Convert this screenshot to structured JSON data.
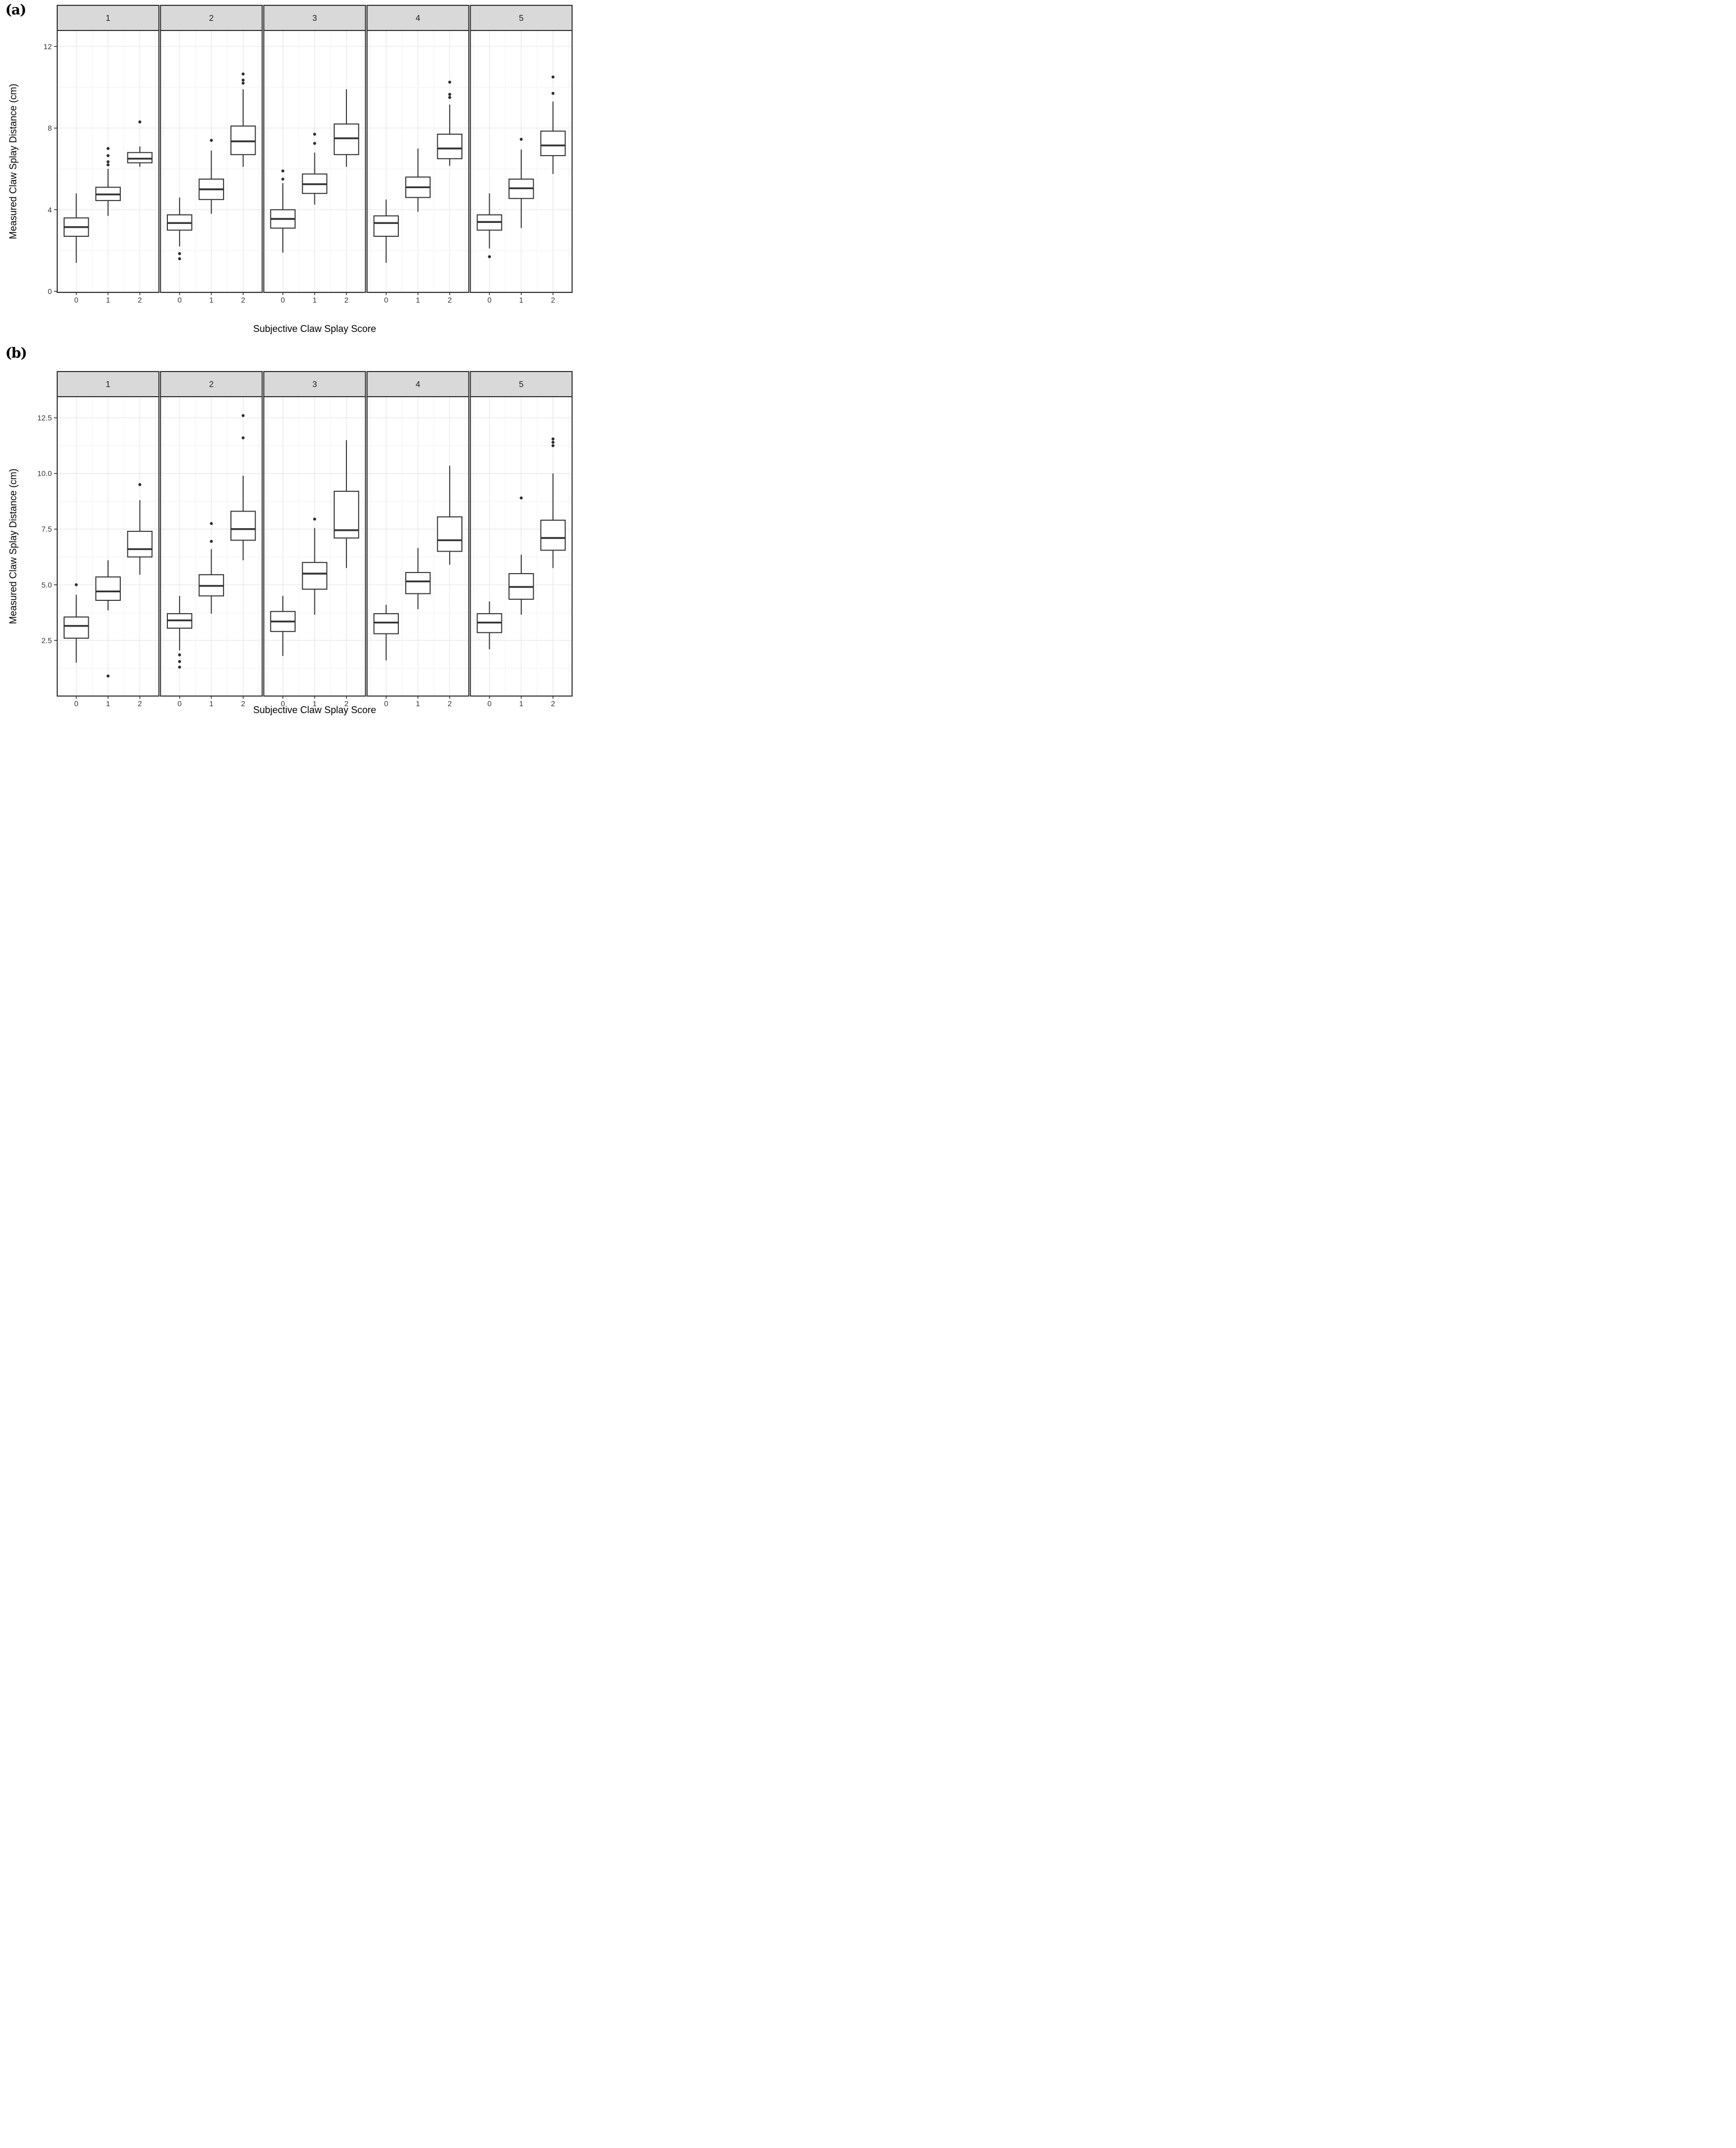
{
  "figure": {
    "description": "Two stacked faceted box-plot panels comparing measured claw splay distance against subjective claw splay score across five groups",
    "background": "#ffffff"
  },
  "style": {
    "strip_bg": "#d9d9d9",
    "strip_text": "#1a1a1a",
    "panel_bg": "#ffffff",
    "panel_border": "#333333",
    "grid_major": "#e7e7e7",
    "grid_minor": "#f2f2f2",
    "box_stroke": "#333333",
    "box_fill": "#ffffff",
    "outlier_fill": "#2e2e2e",
    "tick_text": "#333333",
    "axis_text": "#000000"
  },
  "chart_data": [
    {
      "type": "boxplot",
      "panel_label": "(a)",
      "xlabel": "Subjective Claw Splay Score",
      "ylabel": "Measured Claw Splay Distance (cm)",
      "x_categories": [
        "0",
        "1",
        "2"
      ],
      "y_ticks": [
        0,
        4,
        8,
        12
      ],
      "y_tick_labels": [
        "0",
        "4",
        "8",
        "12"
      ],
      "y_minor_ticks": [
        2,
        6,
        10
      ],
      "ylim": [
        -0.05,
        12.78
      ],
      "grid": "on",
      "legend": "none",
      "facets": [
        {
          "label": "1",
          "boxes": [
            {
              "category": "0",
              "whisker_low": 1.4,
              "q1": 2.7,
              "median": 3.15,
              "q3": 3.6,
              "whisker_high": 4.8,
              "outliers": []
            },
            {
              "category": "1",
              "whisker_low": 3.7,
              "q1": 4.45,
              "median": 4.75,
              "q3": 5.1,
              "whisker_high": 6.0,
              "outliers": [
                6.2,
                6.35,
                6.65,
                7.0
              ]
            },
            {
              "category": "2",
              "whisker_low": 6.1,
              "q1": 6.3,
              "median": 6.5,
              "q3": 6.8,
              "whisker_high": 7.1,
              "outliers": [
                8.3
              ]
            }
          ]
        },
        {
          "label": "2",
          "boxes": [
            {
              "category": "0",
              "whisker_low": 2.2,
              "q1": 3.0,
              "median": 3.35,
              "q3": 3.75,
              "whisker_high": 4.6,
              "outliers": [
                1.85,
                1.6
              ]
            },
            {
              "category": "1",
              "whisker_low": 3.8,
              "q1": 4.5,
              "median": 5.0,
              "q3": 5.5,
              "whisker_high": 6.9,
              "outliers": [
                7.4
              ]
            },
            {
              "category": "2",
              "whisker_low": 6.1,
              "q1": 6.7,
              "median": 7.35,
              "q3": 8.1,
              "whisker_high": 9.9,
              "outliers": [
                10.2,
                10.35,
                10.65
              ]
            }
          ]
        },
        {
          "label": "3",
          "boxes": [
            {
              "category": "0",
              "whisker_low": 1.9,
              "q1": 3.1,
              "median": 3.55,
              "q3": 4.0,
              "whisker_high": 5.3,
              "outliers": [
                5.5,
                5.9
              ]
            },
            {
              "category": "1",
              "whisker_low": 4.25,
              "q1": 4.8,
              "median": 5.25,
              "q3": 5.75,
              "whisker_high": 6.8,
              "outliers": [
                7.25,
                7.7
              ]
            },
            {
              "category": "2",
              "whisker_low": 6.1,
              "q1": 6.7,
              "median": 7.5,
              "q3": 8.2,
              "whisker_high": 9.9,
              "outliers": []
            }
          ]
        },
        {
          "label": "4",
          "boxes": [
            {
              "category": "0",
              "whisker_low": 1.4,
              "q1": 2.7,
              "median": 3.35,
              "q3": 3.7,
              "whisker_high": 4.5,
              "outliers": []
            },
            {
              "category": "1",
              "whisker_low": 3.9,
              "q1": 4.6,
              "median": 5.1,
              "q3": 5.6,
              "whisker_high": 7.0,
              "outliers": []
            },
            {
              "category": "2",
              "whisker_low": 6.15,
              "q1": 6.5,
              "median": 7.0,
              "q3": 7.7,
              "whisker_high": 9.15,
              "outliers": [
                9.5,
                9.65,
                10.25
              ]
            }
          ]
        },
        {
          "label": "5",
          "boxes": [
            {
              "category": "0",
              "whisker_low": 2.1,
              "q1": 3.0,
              "median": 3.4,
              "q3": 3.75,
              "whisker_high": 4.8,
              "outliers": [
                1.7
              ]
            },
            {
              "category": "1",
              "whisker_low": 3.1,
              "q1": 4.55,
              "median": 5.05,
              "q3": 5.5,
              "whisker_high": 6.95,
              "outliers": [
                7.45
              ]
            },
            {
              "category": "2",
              "whisker_low": 5.75,
              "q1": 6.65,
              "median": 7.15,
              "q3": 7.85,
              "whisker_high": 9.3,
              "outliers": [
                9.7,
                10.5
              ]
            }
          ]
        }
      ]
    },
    {
      "type": "boxplot",
      "panel_label": "(b)",
      "xlabel": "Subjective Claw Splay Score",
      "ylabel": "Measured Claw Splay Distance (cm)",
      "x_categories": [
        "0",
        "1",
        "2"
      ],
      "y_ticks": [
        2.5,
        5.0,
        7.5,
        10.0,
        12.5
      ],
      "y_tick_labels": [
        "2.5",
        "5.0",
        "7.5",
        "10.0",
        "12.5"
      ],
      "y_minor_ticks": [
        1.25,
        3.75,
        6.25,
        8.75,
        11.25
      ],
      "ylim": [
        0,
        13.45
      ],
      "grid": "on",
      "legend": "none",
      "facets": [
        {
          "label": "1",
          "boxes": [
            {
              "category": "0",
              "whisker_low": 1.5,
              "q1": 2.6,
              "median": 3.15,
              "q3": 3.55,
              "whisker_high": 4.55,
              "outliers": [
                5.0
              ]
            },
            {
              "category": "1",
              "whisker_low": 3.85,
              "q1": 4.3,
              "median": 4.7,
              "q3": 5.35,
              "whisker_high": 6.1,
              "outliers": [
                0.9
              ]
            },
            {
              "category": "2",
              "whisker_low": 5.45,
              "q1": 6.25,
              "median": 6.6,
              "q3": 7.4,
              "whisker_high": 8.8,
              "outliers": [
                9.5
              ]
            }
          ]
        },
        {
          "label": "2",
          "boxes": [
            {
              "category": "0",
              "whisker_low": 2.05,
              "q1": 3.05,
              "median": 3.4,
              "q3": 3.7,
              "whisker_high": 4.5,
              "outliers": [
                1.85,
                1.55,
                1.3
              ]
            },
            {
              "category": "1",
              "whisker_low": 3.7,
              "q1": 4.5,
              "median": 4.95,
              "q3": 5.45,
              "whisker_high": 6.6,
              "outliers": [
                6.95,
                7.75
              ]
            },
            {
              "category": "2",
              "whisker_low": 6.1,
              "q1": 7.0,
              "median": 7.5,
              "q3": 8.3,
              "whisker_high": 9.9,
              "outliers": [
                11.6,
                12.6
              ]
            }
          ]
        },
        {
          "label": "3",
          "boxes": [
            {
              "category": "0",
              "whisker_low": 1.8,
              "q1": 2.9,
              "median": 3.35,
              "q3": 3.8,
              "whisker_high": 4.5,
              "outliers": []
            },
            {
              "category": "1",
              "whisker_low": 3.65,
              "q1": 4.8,
              "median": 5.5,
              "q3": 6.0,
              "whisker_high": 7.55,
              "outliers": [
                7.95
              ]
            },
            {
              "category": "2",
              "whisker_low": 5.75,
              "q1": 7.1,
              "median": 7.45,
              "q3": 9.2,
              "whisker_high": 11.5,
              "outliers": []
            }
          ]
        },
        {
          "label": "4",
          "boxes": [
            {
              "category": "0",
              "whisker_low": 1.6,
              "q1": 2.8,
              "median": 3.3,
              "q3": 3.7,
              "whisker_high": 4.1,
              "outliers": []
            },
            {
              "category": "1",
              "whisker_low": 3.9,
              "q1": 4.6,
              "median": 5.15,
              "q3": 5.55,
              "whisker_high": 6.65,
              "outliers": []
            },
            {
              "category": "2",
              "whisker_low": 5.9,
              "q1": 6.5,
              "median": 7.0,
              "q3": 8.05,
              "whisker_high": 10.35,
              "outliers": []
            }
          ]
        },
        {
          "label": "5",
          "boxes": [
            {
              "category": "0",
              "whisker_low": 2.1,
              "q1": 2.85,
              "median": 3.3,
              "q3": 3.7,
              "whisker_high": 4.25,
              "outliers": []
            },
            {
              "category": "1",
              "whisker_low": 3.65,
              "q1": 4.35,
              "median": 4.9,
              "q3": 5.5,
              "whisker_high": 6.35,
              "outliers": [
                8.9
              ]
            },
            {
              "category": "2",
              "whisker_low": 5.75,
              "q1": 6.55,
              "median": 7.1,
              "q3": 7.9,
              "whisker_high": 10.0,
              "outliers": [
                11.25,
                11.4,
                11.55
              ]
            }
          ]
        }
      ]
    }
  ]
}
